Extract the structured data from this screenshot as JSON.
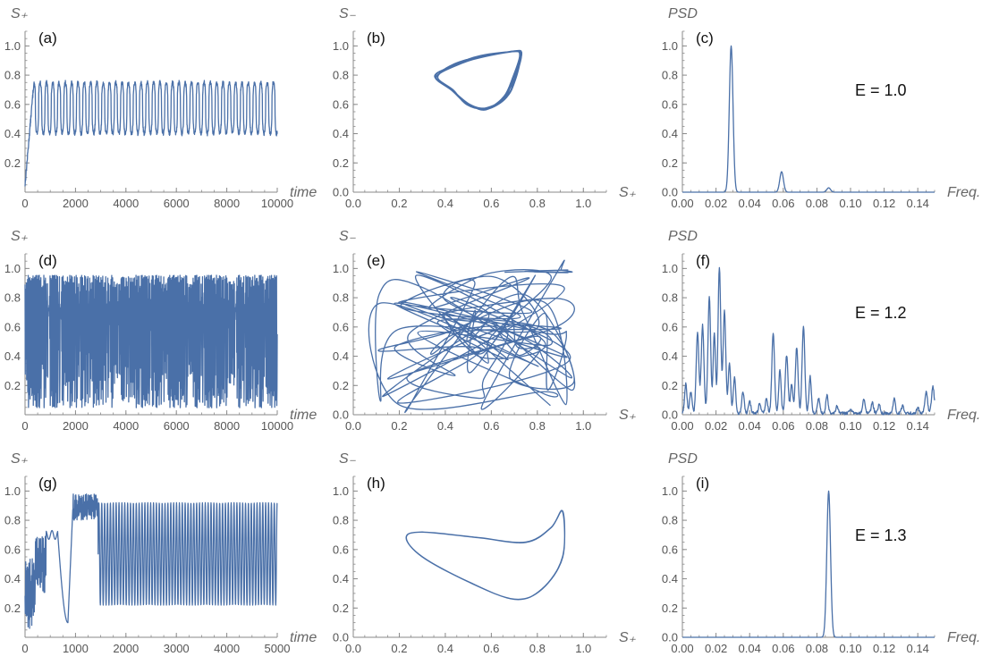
{
  "figure": {
    "series_color": "#4a70a8",
    "axis_color": "#8a8a8a"
  },
  "chart_data": [
    {
      "id": "a",
      "type": "line",
      "label": "(a)",
      "xlabel": "time",
      "ylabel": "S₊",
      "xlim": [
        0,
        10000
      ],
      "ylim": [
        0,
        1.1
      ],
      "xticks": [
        0,
        2000,
        4000,
        6000,
        8000,
        10000
      ],
      "xtick_labels": [
        "0",
        "2000",
        "4000",
        "6000",
        "8000",
        "10000"
      ],
      "yticks": [
        0.2,
        0.4,
        0.6,
        0.8,
        1.0
      ],
      "ytick_labels": [
        "0.2",
        "0.4",
        "0.6",
        "0.8",
        "1.0"
      ],
      "signal": {
        "kind": "periodic",
        "t_max": 10000,
        "period": 250,
        "min": 0.4,
        "max": 0.75,
        "transient_end": 350,
        "start": 0.05
      },
      "grid": false
    },
    {
      "id": "b",
      "type": "line",
      "label": "(b)",
      "xlabel": "S₊",
      "ylabel": "S₋",
      "xlim": [
        0,
        1.1
      ],
      "ylim": [
        0,
        1.1
      ],
      "xticks": [
        0.0,
        0.2,
        0.4,
        0.6,
        0.8,
        1.0
      ],
      "xtick_labels": [
        "0.0",
        "0.2",
        "0.4",
        "0.6",
        "0.8",
        "1.0"
      ],
      "yticks": [
        0.0,
        0.2,
        0.4,
        0.6,
        0.8,
        1.0
      ],
      "ytick_labels": [
        "0.0",
        "0.2",
        "0.4",
        "0.6",
        "0.8",
        "1.0"
      ],
      "loop": {
        "kind": "smooth-loop",
        "points": [
          [
            0.36,
            0.79
          ],
          [
            0.44,
            0.87
          ],
          [
            0.56,
            0.93
          ],
          [
            0.7,
            0.96
          ],
          [
            0.73,
            0.94
          ],
          [
            0.7,
            0.78
          ],
          [
            0.66,
            0.65
          ],
          [
            0.58,
            0.57
          ],
          [
            0.5,
            0.6
          ],
          [
            0.43,
            0.7
          ]
        ],
        "jitter": 0.015,
        "copies": 7
      },
      "grid": false
    },
    {
      "id": "c",
      "type": "line",
      "label": "(c)",
      "xlabel": "Freq.",
      "ylabel": "PSD",
      "annotation": "E = 1.0",
      "xlim": [
        0,
        0.15
      ],
      "ylim": [
        0,
        1.1
      ],
      "xticks": [
        0.0,
        0.02,
        0.04,
        0.06,
        0.08,
        0.1,
        0.12,
        0.14
      ],
      "xtick_labels": [
        "0.00",
        "0.02",
        "0.04",
        "0.06",
        "0.08",
        "0.10",
        "0.12",
        "0.14"
      ],
      "yticks": [
        0.0,
        0.2,
        0.4,
        0.6,
        0.8,
        1.0
      ],
      "ytick_labels": [
        "0.0",
        "0.2",
        "0.4",
        "0.6",
        "0.8",
        "1.0"
      ],
      "peaks": [
        [
          0.029,
          1.0,
          0.0011
        ],
        [
          0.059,
          0.14,
          0.0011
        ],
        [
          0.087,
          0.03,
          0.0011
        ]
      ],
      "grid": false
    },
    {
      "id": "d",
      "type": "line",
      "label": "(d)",
      "xlabel": "time",
      "ylabel": "S₊",
      "xlim": [
        0,
        10000
      ],
      "ylim": [
        0,
        1.1
      ],
      "xticks": [
        0,
        2000,
        4000,
        6000,
        8000,
        10000
      ],
      "xtick_labels": [
        "0",
        "2000",
        "4000",
        "6000",
        "8000",
        "10000"
      ],
      "yticks": [
        0.2,
        0.4,
        0.6,
        0.8,
        1.0
      ],
      "ytick_labels": [
        "0.2",
        "0.4",
        "0.6",
        "0.8",
        "1.0"
      ],
      "signal": {
        "kind": "chaotic",
        "t_max": 10000,
        "min": 0.02,
        "max": 0.96
      },
      "grid": false
    },
    {
      "id": "e",
      "type": "line",
      "label": "(e)",
      "xlabel": "S₊",
      "ylabel": "S₋",
      "xlim": [
        0,
        1.1
      ],
      "ylim": [
        0,
        1.1
      ],
      "xticks": [
        0.0,
        0.2,
        0.4,
        0.6,
        0.8,
        1.0
      ],
      "xtick_labels": [
        "0.0",
        "0.2",
        "0.4",
        "0.6",
        "0.8",
        "1.0"
      ],
      "yticks": [
        0.0,
        0.2,
        0.4,
        0.6,
        0.8,
        1.0
      ],
      "ytick_labels": [
        "0.0",
        "0.2",
        "0.4",
        "0.6",
        "0.8",
        "1.0"
      ],
      "loop": {
        "kind": "tangle",
        "xrange": [
          0.1,
          0.96
        ],
        "yrange": [
          0.02,
          0.99
        ]
      },
      "grid": false
    },
    {
      "id": "f",
      "type": "line",
      "label": "(f)",
      "xlabel": "Freq.",
      "ylabel": "PSD",
      "annotation": "E = 1.2",
      "xlim": [
        0,
        0.15
      ],
      "ylim": [
        0,
        1.1
      ],
      "xticks": [
        0.0,
        0.02,
        0.04,
        0.06,
        0.08,
        0.1,
        0.12,
        0.14
      ],
      "xtick_labels": [
        "0.00",
        "0.02",
        "0.04",
        "0.06",
        "0.08",
        "0.10",
        "0.12",
        "0.14"
      ],
      "yticks": [
        0.0,
        0.2,
        0.4,
        0.6,
        0.8,
        1.0
      ],
      "ytick_labels": [
        "0.0",
        "0.2",
        "0.4",
        "0.6",
        "0.8",
        "1.0"
      ],
      "peaks": [
        [
          0.002,
          0.2,
          0.0007
        ],
        [
          0.005,
          0.15,
          0.0007
        ],
        [
          0.009,
          0.55,
          0.0008
        ],
        [
          0.012,
          0.6,
          0.0008
        ],
        [
          0.016,
          0.8,
          0.0008
        ],
        [
          0.019,
          0.55,
          0.0007
        ],
        [
          0.022,
          1.0,
          0.0008
        ],
        [
          0.025,
          0.7,
          0.0008
        ],
        [
          0.028,
          0.35,
          0.0007
        ],
        [
          0.031,
          0.25,
          0.0007
        ],
        [
          0.036,
          0.15,
          0.0007
        ],
        [
          0.04,
          0.08,
          0.0007
        ],
        [
          0.046,
          0.07,
          0.0007
        ],
        [
          0.05,
          0.1,
          0.0007
        ],
        [
          0.054,
          0.55,
          0.0008
        ],
        [
          0.058,
          0.3,
          0.0007
        ],
        [
          0.062,
          0.4,
          0.0008
        ],
        [
          0.065,
          0.2,
          0.0007
        ],
        [
          0.068,
          0.45,
          0.0008
        ],
        [
          0.072,
          0.6,
          0.0008
        ],
        [
          0.076,
          0.25,
          0.0007
        ],
        [
          0.081,
          0.1,
          0.0007
        ],
        [
          0.086,
          0.12,
          0.0007
        ],
        [
          0.092,
          0.05,
          0.0007
        ],
        [
          0.1,
          0.03,
          0.0007
        ],
        [
          0.108,
          0.1,
          0.0007
        ],
        [
          0.113,
          0.07,
          0.0007
        ],
        [
          0.117,
          0.06,
          0.0007
        ],
        [
          0.126,
          0.1,
          0.0007
        ],
        [
          0.131,
          0.05,
          0.0007
        ],
        [
          0.14,
          0.04,
          0.0007
        ],
        [
          0.145,
          0.15,
          0.0008
        ],
        [
          0.149,
          0.18,
          0.0008
        ]
      ],
      "noise": 0.02,
      "grid": false
    },
    {
      "id": "g",
      "type": "line",
      "label": "(g)",
      "xlabel": "time",
      "ylabel": "S₊",
      "xlim": [
        0,
        5000
      ],
      "ylim": [
        0,
        1.1
      ],
      "xticks": [
        0,
        1000,
        2000,
        3000,
        4000,
        5000
      ],
      "xtick_labels": [
        "0",
        "1000",
        "2000",
        "3000",
        "4000",
        "5000"
      ],
      "yticks": [
        0.2,
        0.4,
        0.6,
        0.8,
        1.0
      ],
      "ytick_labels": [
        "0.2",
        "0.4",
        "0.6",
        "0.8",
        "1.0"
      ],
      "signal": {
        "kind": "transient-periodic",
        "t_max": 5000,
        "period": 57,
        "min": 0.22,
        "max": 0.92,
        "transient_end": 1450
      },
      "grid": false
    },
    {
      "id": "h",
      "type": "line",
      "label": "(h)",
      "xlabel": "S₊",
      "ylabel": "S₋",
      "xlim": [
        0,
        1.1
      ],
      "ylim": [
        0,
        1.1
      ],
      "xticks": [
        0.0,
        0.2,
        0.4,
        0.6,
        0.8,
        1.0
      ],
      "xtick_labels": [
        "0.0",
        "0.2",
        "0.4",
        "0.6",
        "0.8",
        "1.0"
      ],
      "yticks": [
        0.0,
        0.2,
        0.4,
        0.6,
        0.8,
        1.0
      ],
      "ytick_labels": [
        "0.0",
        "0.2",
        "0.4",
        "0.6",
        "0.8",
        "1.0"
      ],
      "loop": {
        "kind": "smooth-loop",
        "points": [
          [
            0.23,
            0.68
          ],
          [
            0.3,
            0.55
          ],
          [
            0.5,
            0.38
          ],
          [
            0.7,
            0.26
          ],
          [
            0.82,
            0.33
          ],
          [
            0.91,
            0.55
          ],
          [
            0.91,
            0.86
          ],
          [
            0.86,
            0.75
          ],
          [
            0.75,
            0.65
          ],
          [
            0.55,
            0.68
          ],
          [
            0.3,
            0.72
          ]
        ],
        "jitter": 0.003,
        "copies": 3
      },
      "grid": false
    },
    {
      "id": "i",
      "type": "line",
      "label": "(i)",
      "xlabel": "Freq.",
      "ylabel": "PSD",
      "annotation": "E = 1.3",
      "xlim": [
        0,
        0.15
      ],
      "ylim": [
        0,
        1.1
      ],
      "xticks": [
        0.0,
        0.02,
        0.04,
        0.06,
        0.08,
        0.1,
        0.12,
        0.14
      ],
      "xtick_labels": [
        "0.00",
        "0.02",
        "0.04",
        "0.06",
        "0.08",
        "0.10",
        "0.12",
        "0.14"
      ],
      "yticks": [
        0.0,
        0.2,
        0.4,
        0.6,
        0.8,
        1.0
      ],
      "ytick_labels": [
        "0.0",
        "0.2",
        "0.4",
        "0.6",
        "0.8",
        "1.0"
      ],
      "peaks": [
        [
          0.087,
          1.0,
          0.0011
        ]
      ],
      "grid": false
    }
  ]
}
